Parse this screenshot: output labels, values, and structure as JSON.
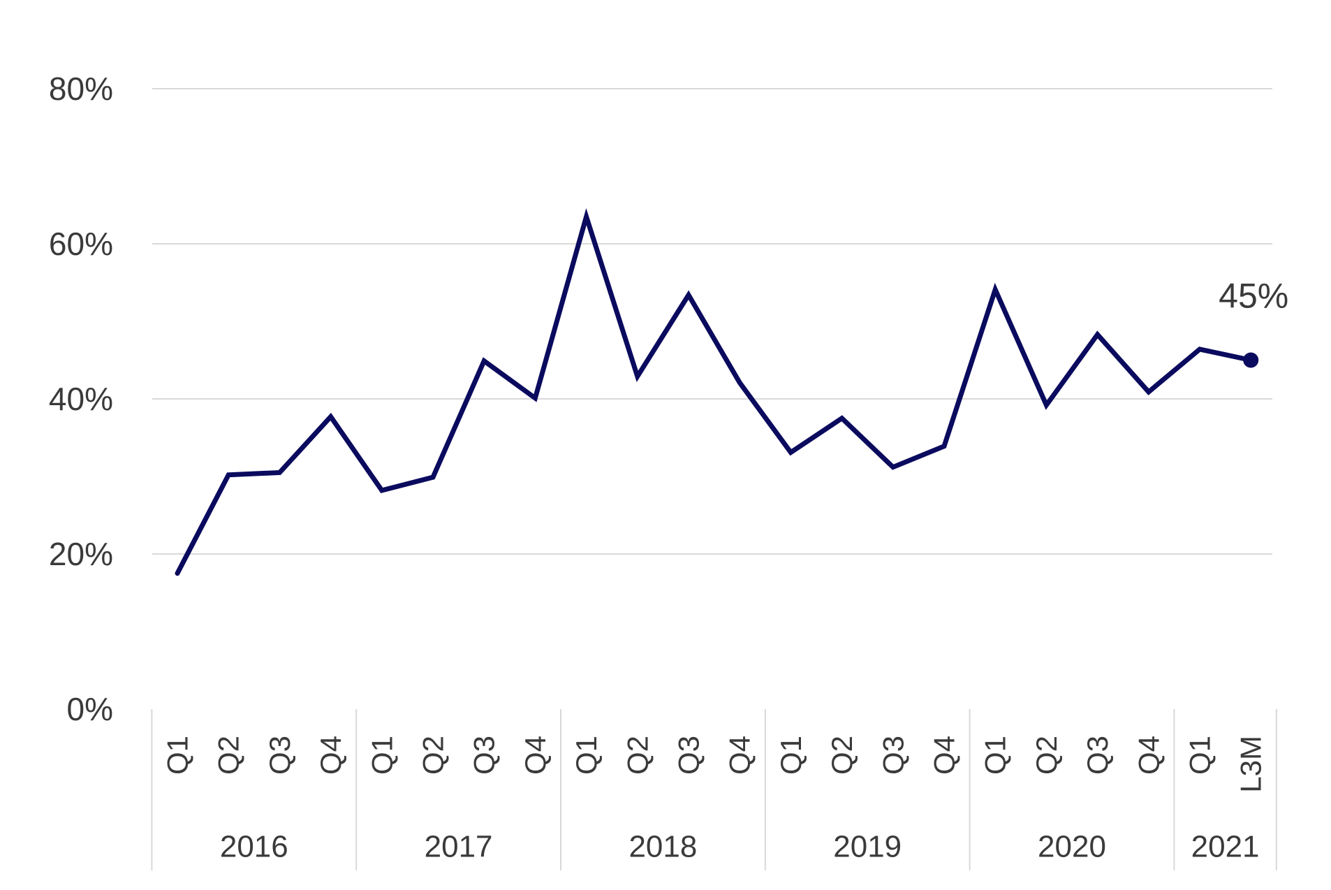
{
  "chart_data": {
    "type": "line",
    "title": "",
    "xlabel": "",
    "ylabel": "",
    "ylim": [
      0,
      80
    ],
    "y_ticks": [
      "0%",
      "20%",
      "40%",
      "60%",
      "80%"
    ],
    "y_tick_values": [
      0,
      20,
      40,
      60,
      80
    ],
    "grid": true,
    "legend": "none",
    "line_color": "#0a0a5e",
    "grid_color": "#d9d9d9",
    "categories": [
      "Q1",
      "Q2",
      "Q3",
      "Q4",
      "Q1",
      "Q2",
      "Q3",
      "Q4",
      "Q1",
      "Q2",
      "Q3",
      "Q4",
      "Q1",
      "Q2",
      "Q3",
      "Q4",
      "Q1",
      "Q2",
      "Q3",
      "Q4",
      "Q1",
      "L3M"
    ],
    "year_groups": [
      {
        "label": "2016",
        "count": 4
      },
      {
        "label": "2017",
        "count": 4
      },
      {
        "label": "2018",
        "count": 4
      },
      {
        "label": "2019",
        "count": 4
      },
      {
        "label": "2020",
        "count": 4
      },
      {
        "label": "2021",
        "count": 2
      }
    ],
    "series": [
      {
        "values": [
          17.5,
          30.2,
          30.5,
          37.7,
          28.2,
          29.9,
          44.9,
          40.1,
          63.5,
          42.9,
          53.4,
          42.1,
          33.1,
          37.5,
          31.2,
          33.9,
          54.1,
          39.2,
          48.3,
          40.9,
          46.4,
          45
        ]
      }
    ],
    "annotations": [
      {
        "index": 21,
        "text": "45%"
      }
    ]
  }
}
